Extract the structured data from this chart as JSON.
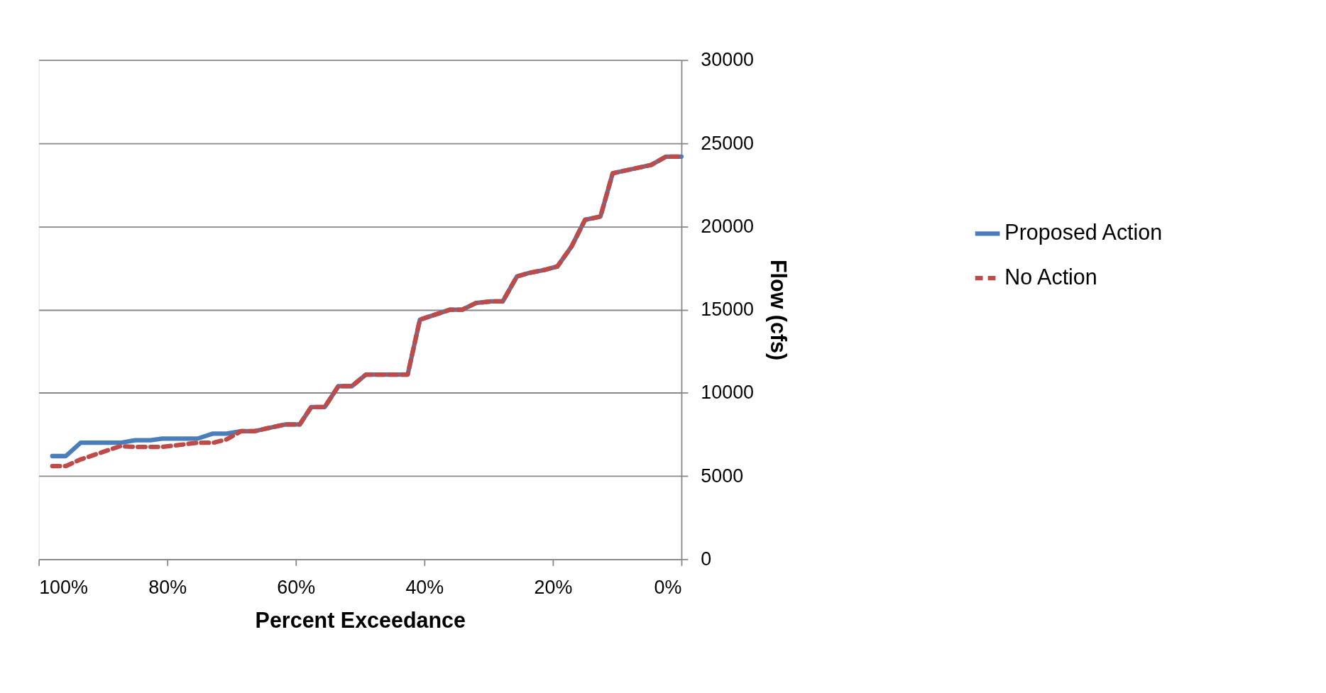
{
  "chart_data": {
    "type": "line",
    "xlabel": "Percent Exceedance",
    "ylabel": "Flow (cfs)",
    "x": [
      97.9,
      95.8,
      93.5,
      87.3,
      85,
      82.6,
      80.8,
      75.3,
      72.9,
      70.8,
      68.5,
      66.4,
      63.5,
      61.6,
      59.4,
      57.6,
      55.5,
      53.4,
      51.3,
      49.1,
      42.6,
      40.7,
      36,
      34.1,
      32,
      29.6,
      27.8,
      25.6,
      23.8,
      21.2,
      19.3,
      17.1,
      15,
      12.6,
      10.7,
      4.7,
      2.4,
      0
    ],
    "series": [
      {
        "name": "Proposed Action",
        "color": "#4a7ebb",
        "line_style": "solid",
        "values": [
          6200,
          6200,
          7000,
          7000,
          7150,
          7150,
          7250,
          7250,
          7550,
          7550,
          7700,
          7700,
          7950,
          8100,
          8100,
          9150,
          9150,
          10400,
          10400,
          11100,
          11100,
          14400,
          15000,
          15000,
          15400,
          15500,
          15500,
          17000,
          17200,
          17400,
          17600,
          18800,
          20400,
          20600,
          23200,
          23700,
          24200,
          24200
        ]
      },
      {
        "name": "No Action",
        "color": "#be4b48",
        "line_style": "dashed",
        "values": [
          5600,
          5600,
          6000,
          6800,
          6750,
          6750,
          6750,
          7000,
          7000,
          7200,
          7700,
          7700,
          7950,
          8100,
          8100,
          9150,
          9150,
          10400,
          10400,
          11100,
          11100,
          14400,
          15000,
          15000,
          15400,
          15500,
          15500,
          17000,
          17200,
          17400,
          17600,
          18800,
          20400,
          20600,
          23200,
          23700,
          24200,
          24200
        ]
      }
    ],
    "xlim": [
      100,
      0
    ],
    "xticks": [
      {
        "value": 100,
        "label": "100%"
      },
      {
        "value": 80,
        "label": "80%"
      },
      {
        "value": 60,
        "label": "60%"
      },
      {
        "value": 40,
        "label": "40%"
      },
      {
        "value": 20,
        "label": "20%"
      },
      {
        "value": 0,
        "label": "0%"
      }
    ],
    "ylim": [
      0,
      30000
    ],
    "yticks": [
      0,
      5000,
      10000,
      15000,
      20000,
      25000,
      30000
    ],
    "grid": "y",
    "legend": "right"
  }
}
